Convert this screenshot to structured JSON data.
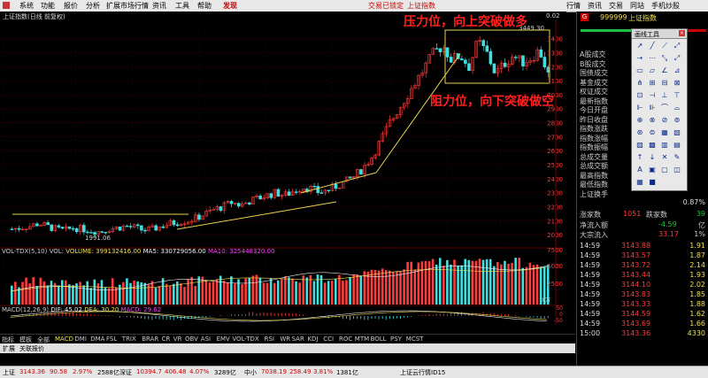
{
  "menu": {
    "items": [
      "系统",
      "功能",
      "报价",
      "分析",
      "扩展市场行情",
      "资讯",
      "工具",
      "帮助"
    ],
    "active": "发现",
    "trade_status": "交易已锁定",
    "index_link": "上证指数",
    "right_buttons": [
      "行情",
      "资讯",
      "交易",
      "同站",
      "手机炒股"
    ]
  },
  "chart": {
    "title": "上证指数(日线 前复权)",
    "price_top_label": "3449.30",
    "low_label": "1991.06",
    "annotation_resistance": "压力位，向上突破做多",
    "annotation_support": "阻力位，向下突破做空",
    "y_ticks": [
      "3400",
      "3300",
      "3200",
      "3100",
      "3000",
      "2900",
      "2800",
      "2700",
      "2600",
      "2500",
      "2400",
      "2300",
      "2200",
      "2100",
      "2000"
    ],
    "volume_ticks": [
      "7500",
      "5000",
      "2500"
    ],
    "volume_unit": "X万",
    "macd_ticks": [
      "50",
      "0",
      "-50"
    ],
    "x_labels": [
      "2014年",
      "8",
      "9",
      "10",
      "11",
      "12",
      "1",
      "2",
      "3"
    ],
    "corner_label": "0.02"
  },
  "volume_header": {
    "name": "VOL-TDX(5,10)",
    "vol": "VOL:",
    "volume_label": "VOLUME: 399132416.00",
    "ma5": "MA5: 330729056.00",
    "ma10": "MA10: 325448320.00"
  },
  "macd_header": {
    "name": "MACD(12,26,9)",
    "dif": "DIF: 45.02",
    "dea": "DEA: 30.20",
    "macd": "MACD: 29.62"
  },
  "right_panel": {
    "code": "999999",
    "name": "上证指数",
    "g_badge": "G",
    "stats_labels": [
      "A股成交",
      "B股成交",
      "国债成交",
      "基金成交",
      "权证成交",
      "最新指数",
      "今日开盘",
      "昨日收盘",
      "指数涨跌",
      "指数涨幅",
      "指数振幅",
      "总成交量",
      "总成交额",
      "最高指数",
      "最低指数",
      "上证换手"
    ],
    "turnover": "0.87%",
    "up_label": "涨家数",
    "up_count": "1051",
    "down_label": "跌家数",
    "down_count": "39",
    "inflow_label": "净流入额",
    "inflow_value": "-4.59",
    "inflow_unit": "亿",
    "big_label": "大宗流入",
    "big_value": "33.17",
    "big_unit": "1%",
    "ticks": [
      {
        "t": "14:59",
        "p": "3143.88",
        "v": "1.91"
      },
      {
        "t": "14:59",
        "p": "3143.57",
        "v": "1.87"
      },
      {
        "t": "14:59",
        "p": "3143.72",
        "v": "2.14"
      },
      {
        "t": "14:59",
        "p": "3143.44",
        "v": "1.93"
      },
      {
        "t": "14:59",
        "p": "3144.10",
        "v": "2.02"
      },
      {
        "t": "14:59",
        "p": "3143.83",
        "v": "1.85"
      },
      {
        "t": "14:59",
        "p": "3143.33",
        "v": "1.88"
      },
      {
        "t": "14:59",
        "p": "3144.59",
        "v": "1.62"
      },
      {
        "t": "14:59",
        "p": "3143.69",
        "v": "1.66"
      },
      {
        "t": "15:00",
        "p": "3143.36",
        "v": "4330"
      }
    ]
  },
  "tool_window": {
    "title": "画线工具",
    "tools": [
      "↗",
      "╱",
      "⟋",
      "⤢",
      "⇢",
      "⋯",
      "⤡",
      "⤢",
      "▭",
      "▱",
      "∠",
      "⊿",
      "⋔",
      "⊞",
      "⊟",
      "⊠",
      "⊡",
      "⊣",
      "⊥",
      "⊤",
      "⊩",
      "⊪",
      "⌒",
      "⌓",
      "⊕",
      "⊗",
      "⊘",
      "⊚",
      "⊛",
      "⊜",
      "▦",
      "▧",
      "▨",
      "▩",
      "▥",
      "▤",
      "↑",
      "↓",
      "✕",
      "✎",
      "A",
      "▣",
      "▢",
      "◫",
      "▦",
      "■"
    ]
  },
  "tabs": {
    "items": [
      "指标",
      "模板",
      "全部",
      "MACD",
      "DMI",
      "DMA",
      "FSL",
      "TRIX",
      "BRAR",
      "CR",
      "VR",
      "OBV",
      "ASI",
      "EMV",
      "VOL-TDX",
      "RSI",
      "WR",
      "SAR",
      "KDJ",
      "CCI",
      "ROC",
      "MTM",
      "BOLL",
      "PSY",
      "MCST"
    ],
    "sub": [
      "扩展",
      "关联报价"
    ]
  },
  "status": {
    "sh_label": "上证",
    "sh_value": "3143.36",
    "sh_change": "90.58",
    "sh_pct": "2.97%",
    "sh_amount": "2588亿",
    "sz_label": "深证",
    "sz_value": "10394.7",
    "sz_change": "406.48",
    "sz_pct": "4.07%",
    "sz_amount": "3289亿",
    "zx_label": "中小",
    "zx_value": "7038.19",
    "zx_change": "258.49",
    "zx_pct": "3.81%",
    "zx_amount": "1381亿",
    "cloud": "上证云行情ID15"
  },
  "colors": {
    "up": "#ff3b3b",
    "down": "#1fbf3f",
    "accent_yellow": "#f0e050",
    "annotation": "#ff2020"
  },
  "chart_data": {
    "type": "candlestick",
    "series_note": "index price, daily",
    "ylim": [
      1950,
      3480
    ],
    "approx_close": [
      2040,
      2050,
      2060,
      2080,
      2060,
      2040,
      2030,
      2050,
      2040,
      2030,
      2020,
      2040,
      2050,
      2060,
      2050,
      2030,
      2040,
      2060,
      2080,
      2090,
      2100,
      2120,
      2150,
      2180,
      2200,
      2230,
      2210,
      2240,
      2260,
      2280,
      2300,
      2280,
      2310,
      2340,
      2330,
      2300,
      2320,
      2350,
      2380,
      2420,
      2480,
      2560,
      2680,
      2800,
      2900,
      3000,
      3100,
      3200,
      3300,
      3350,
      3250,
      3280,
      3200,
      3380,
      3300,
      3150,
      3220,
      3280,
      3230,
      3260,
      3320,
      3143
    ]
  }
}
